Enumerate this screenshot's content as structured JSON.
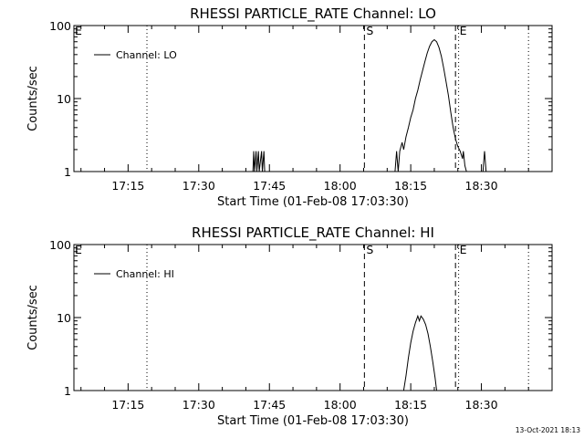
{
  "chart_data": [
    {
      "type": "line",
      "title": "RHESSI PARTICLE_RATE Channel: LO",
      "xlabel": "Start Time (01-Feb-08 17:03:30)",
      "ylabel": "Counts/sec",
      "yscale": "log",
      "ylim": [
        1,
        100
      ],
      "xlim": [
        "17:03:30",
        "18:45:00"
      ],
      "x_ticks": [
        "17:15",
        "17:30",
        "17:45",
        "18:00",
        "18:15",
        "18:30"
      ],
      "y_ticks": [
        "1",
        "10",
        "100"
      ],
      "legend": "top-left",
      "grid": false,
      "series": [
        {
          "name": "Channel: LO",
          "color": "#000000",
          "points": [
            [
              "17:41:30",
              1
            ],
            [
              "17:41:40",
              1.9
            ],
            [
              "17:41:50",
              1
            ],
            [
              "17:42:10",
              1.9
            ],
            [
              "17:42:20",
              1
            ],
            [
              "17:42:40",
              1.9
            ],
            [
              "17:42:50",
              1
            ],
            [
              "17:43:20",
              1.9
            ],
            [
              "17:43:30",
              1
            ],
            [
              "17:43:50",
              1.9
            ],
            [
              "17:44:00",
              1
            ],
            [
              "18:11:40",
              1
            ],
            [
              "18:12:00",
              1.9
            ],
            [
              "18:12:20",
              1
            ],
            [
              "18:12:40",
              1.9
            ],
            [
              "18:13:10",
              2.5
            ],
            [
              "18:13:30",
              2.0
            ],
            [
              "18:14:00",
              3.0
            ],
            [
              "18:14:30",
              4.0
            ],
            [
              "18:15:00",
              5.5
            ],
            [
              "18:15:30",
              7.0
            ],
            [
              "18:16:00",
              10
            ],
            [
              "18:16:30",
              13
            ],
            [
              "18:17:00",
              18
            ],
            [
              "18:17:30",
              24
            ],
            [
              "18:18:00",
              32
            ],
            [
              "18:18:30",
              42
            ],
            [
              "18:19:00",
              52
            ],
            [
              "18:19:30",
              60
            ],
            [
              "18:20:00",
              64
            ],
            [
              "18:20:30",
              60
            ],
            [
              "18:21:00",
              50
            ],
            [
              "18:21:30",
              38
            ],
            [
              "18:22:00",
              26
            ],
            [
              "18:22:30",
              17
            ],
            [
              "18:23:00",
              11
            ],
            [
              "18:23:30",
              6.5
            ],
            [
              "18:24:00",
              4.0
            ],
            [
              "18:24:30",
              2.8
            ],
            [
              "18:25:00",
              2.2
            ],
            [
              "18:25:30",
              1.9
            ],
            [
              "18:26:00",
              1.5
            ],
            [
              "18:26:10",
              1.9
            ],
            [
              "18:26:30",
              1.2
            ],
            [
              "18:26:50",
              1
            ],
            [
              "18:30:20",
              1
            ],
            [
              "18:30:40",
              1.9
            ],
            [
              "18:31:00",
              1
            ]
          ]
        }
      ],
      "markers": [
        {
          "time": "17:03:30",
          "label": "E",
          "style": "none"
        },
        {
          "time": "17:19:00",
          "label": "",
          "style": "dotted"
        },
        {
          "time": "18:05:10",
          "label": "S",
          "style": "dashed"
        },
        {
          "time": "18:24:30",
          "label": "",
          "style": "dashed"
        },
        {
          "time": "18:25:10",
          "label": "E",
          "style": "dotted"
        },
        {
          "time": "18:40:00",
          "label": "",
          "style": "dotted"
        }
      ]
    },
    {
      "type": "line",
      "title": "RHESSI PARTICLE_RATE Channel: HI",
      "xlabel": "Start Time (01-Feb-08 17:03:30)",
      "ylabel": "Counts/sec",
      "yscale": "log",
      "ylim": [
        1,
        100
      ],
      "xlim": [
        "17:03:30",
        "18:45:00"
      ],
      "x_ticks": [
        "17:15",
        "17:30",
        "17:45",
        "18:00",
        "18:15",
        "18:30"
      ],
      "y_ticks": [
        "1",
        "10",
        "100"
      ],
      "legend": "top-left",
      "grid": false,
      "series": [
        {
          "name": "Channel: HI",
          "color": "#000000",
          "points": [
            [
              "18:13:30",
              1
            ],
            [
              "18:14:00",
              1.6
            ],
            [
              "18:14:30",
              2.8
            ],
            [
              "18:15:00",
              4.5
            ],
            [
              "18:15:30",
              6.5
            ],
            [
              "18:16:00",
              8.5
            ],
            [
              "18:16:30",
              10.5
            ],
            [
              "18:16:50",
              9.0
            ],
            [
              "18:17:10",
              10.5
            ],
            [
              "18:17:40",
              9.5
            ],
            [
              "18:18:10",
              8.0
            ],
            [
              "18:18:40",
              6.0
            ],
            [
              "18:19:10",
              4.0
            ],
            [
              "18:19:40",
              2.5
            ],
            [
              "18:20:10",
              1.5
            ],
            [
              "18:20:30",
              1
            ]
          ]
        }
      ],
      "markers": [
        {
          "time": "17:03:30",
          "label": "E",
          "style": "none"
        },
        {
          "time": "17:19:00",
          "label": "",
          "style": "dotted"
        },
        {
          "time": "18:05:10",
          "label": "S",
          "style": "dashed"
        },
        {
          "time": "18:24:30",
          "label": "",
          "style": "dashed"
        },
        {
          "time": "18:25:10",
          "label": "E",
          "style": "dotted"
        },
        {
          "time": "18:40:00",
          "label": "",
          "style": "dotted"
        }
      ]
    }
  ],
  "footer": {
    "timestamp": "13-Oct-2021 18:13"
  }
}
